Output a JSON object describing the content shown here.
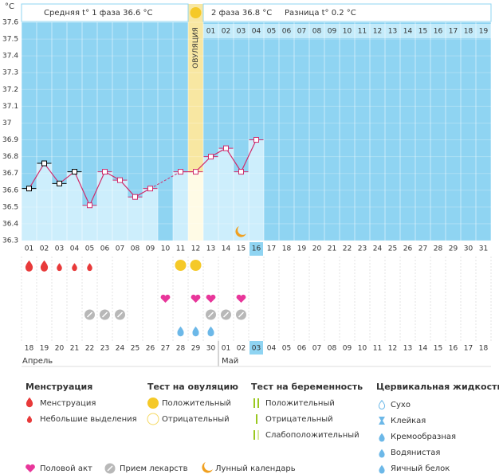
{
  "chart_data": {
    "type": "line",
    "y_unit": "°C",
    "header": {
      "phase1": "Средняя t° 1 фаза  36.6 °C",
      "phase2": "2 фаза  36.8 °C",
      "diff": "Разница t°  0.2 °C"
    },
    "ovulation_label": "ОВУЛЯЦИЯ",
    "categories": [
      "01",
      "02",
      "03",
      "04",
      "05",
      "06",
      "07",
      "08",
      "09",
      "10",
      "11",
      "12",
      "13",
      "14",
      "15",
      "16",
      "17",
      "18",
      "19",
      "20",
      "21",
      "22",
      "23",
      "24",
      "25",
      "26",
      "27",
      "28",
      "29",
      "30",
      "31"
    ],
    "phase2_days": [
      "01",
      "02",
      "03",
      "04",
      "05",
      "06",
      "07",
      "08",
      "09",
      "10",
      "11",
      "12",
      "13",
      "14",
      "15",
      "16",
      "17",
      "18",
      "19"
    ],
    "series": [
      {
        "name": "t°",
        "color": "#d02c6c",
        "values": [
          36.61,
          36.76,
          36.64,
          36.71,
          36.51,
          36.71,
          36.66,
          36.56,
          36.61,
          null,
          36.71,
          36.71,
          36.8,
          36.85,
          36.71,
          36.9,
          null,
          null,
          null,
          null,
          null,
          null,
          null,
          null,
          null,
          null,
          null,
          null,
          null,
          null,
          null
        ],
        "marker_colors": [
          "#000",
          "#000",
          "#000",
          "#000",
          "#d02c6c",
          "#d02c6c",
          "#d02c6c",
          "#d02c6c",
          "#d02c6c",
          "#d02c6c",
          "#d02c6c",
          "#d02c6c",
          "#d02c6c",
          "#d02c6c",
          "#d02c6c",
          "#d02c6c",
          "#d02c6c",
          "#d02c6c",
          "#d02c6c",
          "#d02c6c",
          "#d02c6c",
          "#d02c6c",
          "#d02c6c",
          "#d02c6c",
          "#d02c6c",
          "#d02c6c",
          "#d02c6c",
          "#d02c6c",
          "#d02c6c",
          "#d02c6c",
          "#d02c6c"
        ]
      }
    ],
    "ylim": [
      36.3,
      37.6
    ],
    "yticks": [
      36.3,
      36.4,
      36.5,
      36.6,
      36.7,
      36.8,
      36.9,
      37,
      37.1,
      37.2,
      37.3,
      37.4,
      37.5,
      37.6
    ],
    "dates": [
      "18",
      "19",
      "20",
      "21",
      "22",
      "23",
      "24",
      "25",
      "26",
      "27",
      "28",
      "29",
      "30",
      "01",
      "02",
      "03",
      "04",
      "05",
      "06",
      "07",
      "08",
      "09",
      "10",
      "11",
      "12",
      "13",
      "14",
      "15",
      "16",
      "17",
      "18"
    ],
    "date_colors": [
      "#d0021b",
      "#d0021b",
      "#333",
      "#333",
      "#333",
      "#333",
      "#333",
      "#d0021b",
      "#d0021b",
      "#333",
      "#333",
      "#333",
      "#333",
      "#333",
      "#d0021b",
      "#333",
      "#333",
      "#333",
      "#333",
      "#333",
      "#333",
      "#d0021b",
      "#d0021b",
      "#333",
      "#333",
      "#333",
      "#333",
      "#333",
      "#d0021b",
      "#d0021b",
      "#333"
    ],
    "months": [
      "Апрель",
      "Май"
    ],
    "legend": {
      "menstruation": {
        "title": "Менструация",
        "items": [
          "Менструация",
          "Небольшие выделения"
        ]
      },
      "ovulation_test": {
        "title": "Тест на овуляцию",
        "items": [
          "Положительный",
          "Отрицательный"
        ]
      },
      "pregnancy_test": {
        "title": "Тест на беременность",
        "items": [
          "Положительный",
          "Отрицательный",
          "Слабоположительный"
        ]
      },
      "cervical": {
        "title": "Цервикальная жидкость",
        "items": [
          "Сухо",
          "Клейкая",
          "Кремообразная",
          "Водянистая",
          "Яичный белок"
        ]
      },
      "other": [
        "Половой акт",
        "Прием лекарств",
        "Лунный календарь"
      ]
    }
  }
}
